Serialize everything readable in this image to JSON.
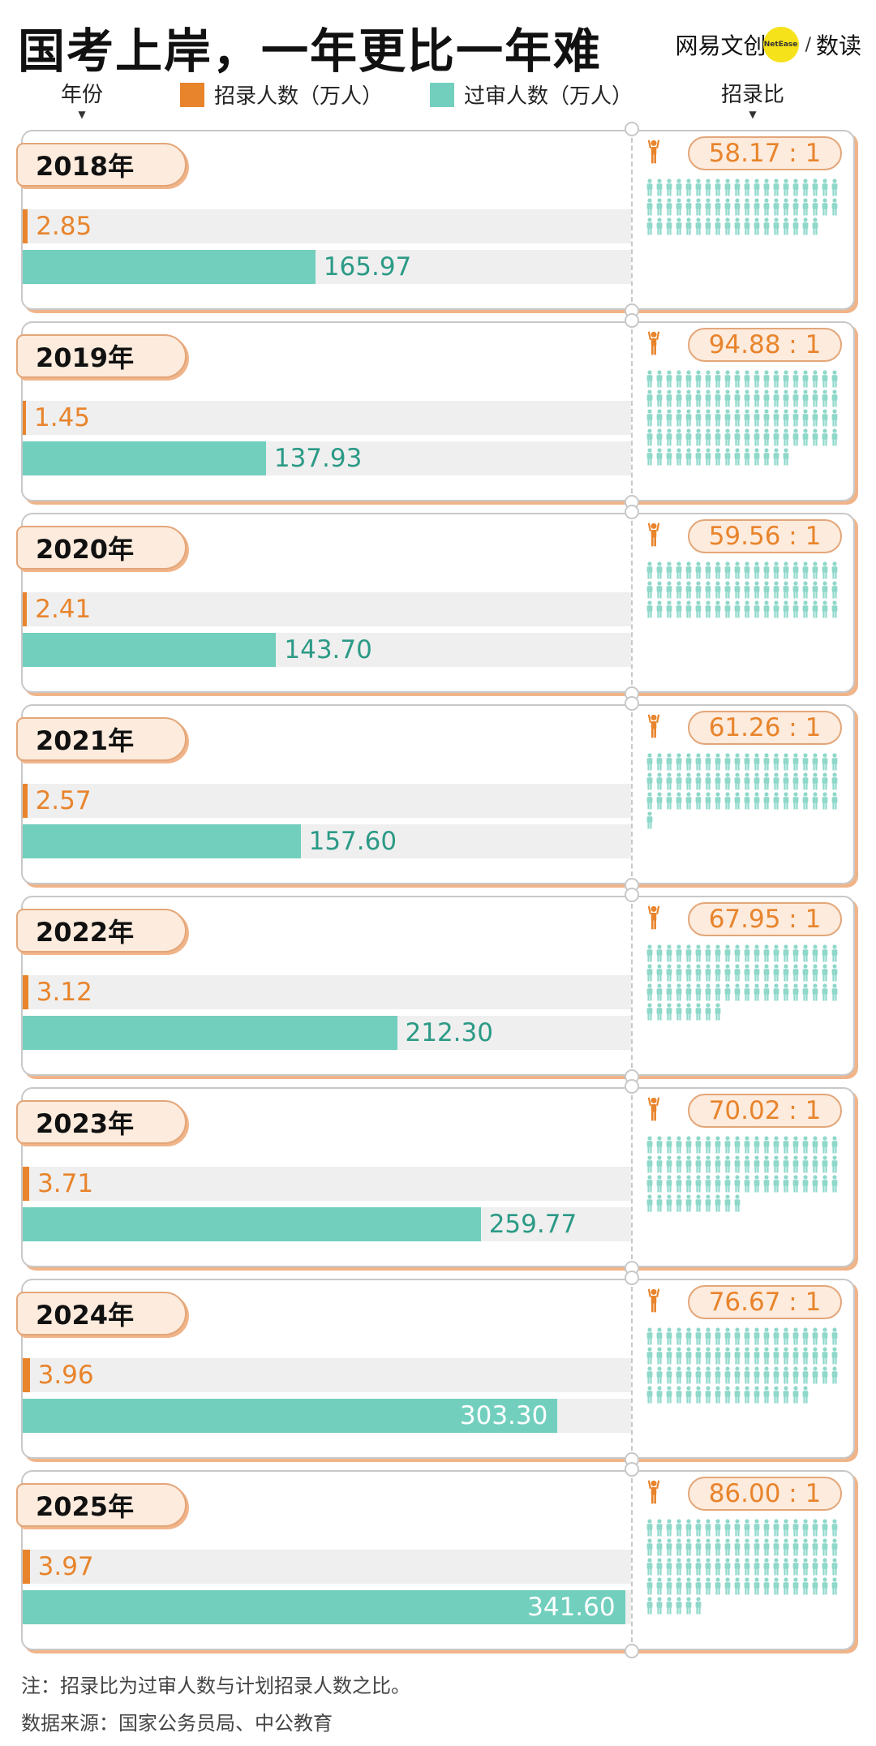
{
  "title": "国考上岸，一年更比一年难",
  "brand": {
    "name": "网易文创",
    "dot": "NetEase",
    "sep": "/",
    "sub": "数读"
  },
  "legend": {
    "year_col": "年份",
    "ratio_col": "招录比",
    "items": [
      {
        "label": "招录人数（万人）",
        "color": "#e8842c"
      },
      {
        "label": "过审人数（万人）",
        "color": "#72cfbe"
      }
    ]
  },
  "chart_data": {
    "type": "bar",
    "categories": [
      "2018年",
      "2019年",
      "2020年",
      "2021年",
      "2022年",
      "2023年",
      "2024年",
      "2025年"
    ],
    "series": [
      {
        "name": "招录人数（万人）",
        "values": [
          2.85,
          1.45,
          2.41,
          2.57,
          3.12,
          3.71,
          3.96,
          3.97
        ],
        "labels": [
          "2.85",
          "1.45",
          "2.41",
          "2.57",
          "3.12",
          "3.71",
          "3.96",
          "3.97"
        ],
        "color": "#e8842c"
      },
      {
        "name": "过审人数（万人）",
        "values": [
          165.97,
          137.93,
          143.7,
          157.6,
          212.3,
          259.77,
          303.3,
          341.6
        ],
        "labels": [
          "165.97",
          "137.93",
          "143.70",
          "157.60",
          "212.30",
          "259.77",
          "303.30",
          "341.60"
        ],
        "color": "#72cfbe"
      }
    ],
    "ratios": [
      "58.17 : 1",
      "94.88 : 1",
      "59.56 : 1",
      "61.26 : 1",
      "67.95 : 1",
      "70.02 : 1",
      "76.67 : 1",
      "86.00 : 1"
    ],
    "ratio_values": [
      58.17,
      94.88,
      59.56,
      61.26,
      67.95,
      70.02,
      76.67,
      86.0
    ],
    "xlim": [
      0,
      345
    ]
  },
  "notes": {
    "note": "注：招录比为过审人数与计划招录人数之比。",
    "source": "数据来源：国家公务员局、中公教育"
  }
}
